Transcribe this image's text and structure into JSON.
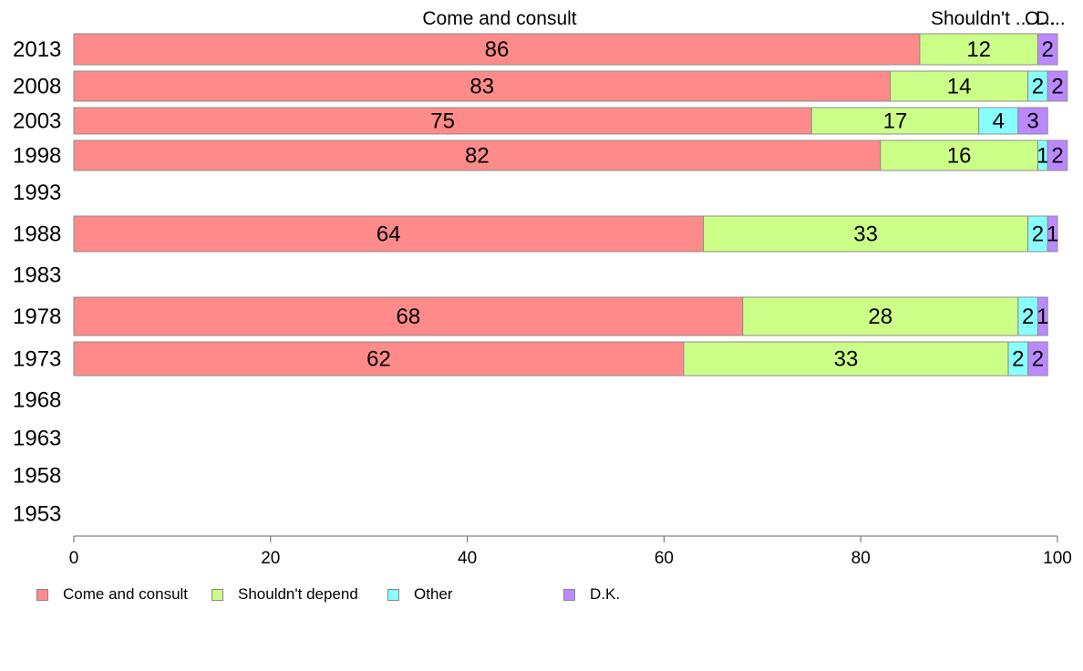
{
  "chart_data": {
    "type": "bar",
    "orientation": "horizontal",
    "stacked": true,
    "categories": [
      "2013",
      "2008",
      "2003",
      "1998",
      "1993",
      "1988",
      "1983",
      "1978",
      "1973",
      "1968",
      "1963",
      "1958",
      "1953"
    ],
    "series": [
      {
        "name": "Come and consult",
        "color": "#ff8a8a",
        "values": [
          86,
          83,
          75,
          82,
          null,
          64,
          null,
          68,
          62,
          null,
          null,
          null,
          null
        ]
      },
      {
        "name": "Shouldn't depend",
        "color": "#ccff88",
        "values": [
          12,
          14,
          17,
          16,
          null,
          33,
          null,
          28,
          33,
          null,
          null,
          null,
          null
        ]
      },
      {
        "name": "Other",
        "color": "#88ffff",
        "values": [
          0,
          2,
          4,
          1,
          null,
          2,
          null,
          2,
          2,
          null,
          null,
          null,
          null
        ]
      },
      {
        "name": "D.K.",
        "color": "#bb88ff",
        "values": [
          2,
          2,
          3,
          2,
          null,
          1,
          null,
          1,
          2,
          null,
          null,
          null,
          null
        ]
      }
    ],
    "top_labels": [
      "Come and consult",
      "Shouldn't ...",
      "O...",
      "D..."
    ],
    "xlim": [
      0,
      100
    ],
    "xticks": [
      "0",
      "20",
      "40",
      "60",
      "80",
      "100"
    ],
    "grid": false,
    "legend_position": "bottom"
  }
}
